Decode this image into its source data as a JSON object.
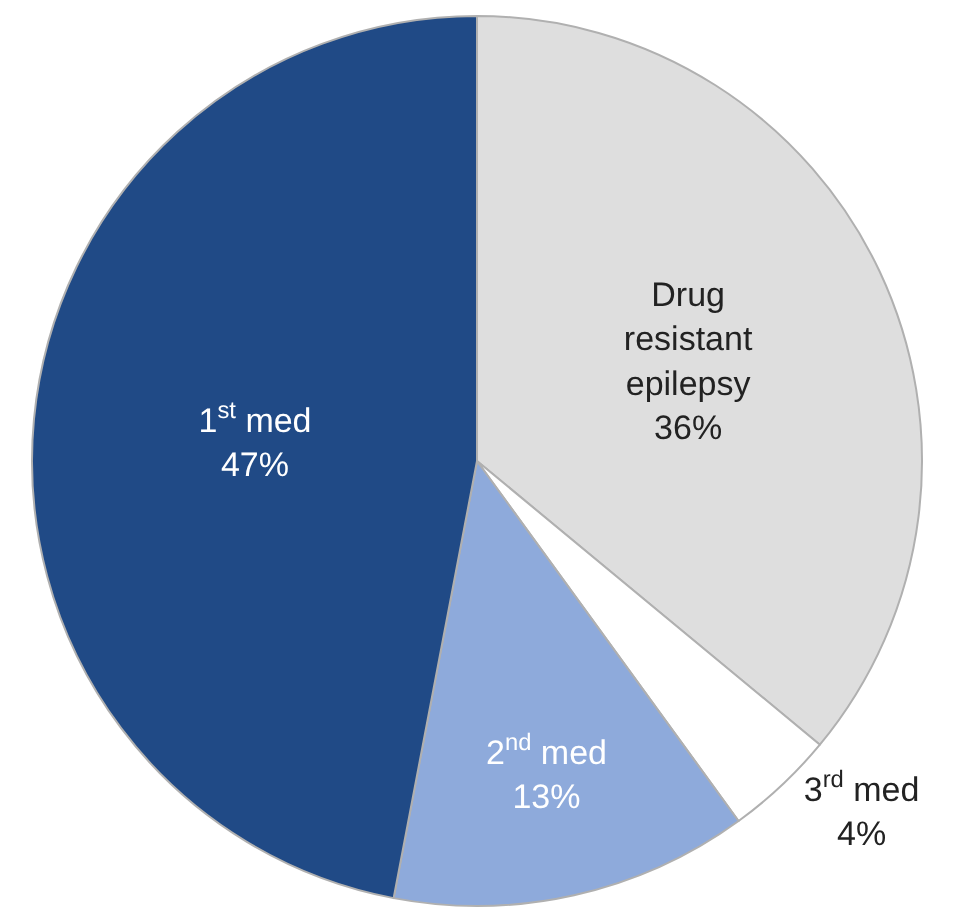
{
  "chart_data": {
    "type": "pie",
    "categories": [
      "Drug resistant epilepsy",
      "3$^{rd}$ med",
      "2$^{nd}$ med",
      "1$^{st}$ med"
    ],
    "values": [
      36,
      4,
      13,
      47
    ],
    "colors": [
      "#dedede",
      "#ffffff",
      "#8eaadb",
      "#204a86"
    ],
    "value_labels": [
      "36%",
      "4%",
      "13%",
      "47%"
    ],
    "legend": false
  }
}
